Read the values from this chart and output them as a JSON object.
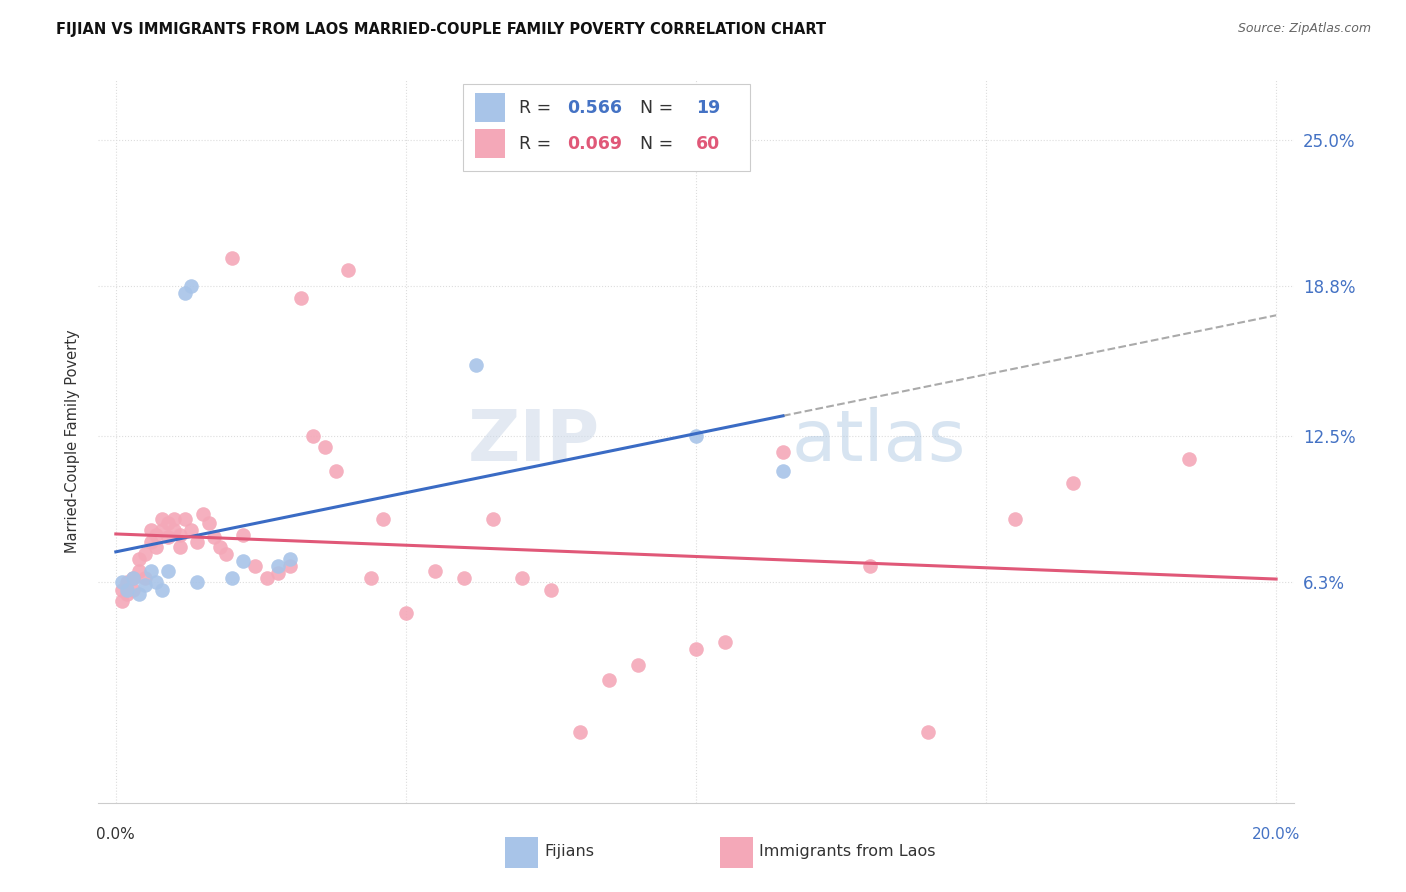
{
  "title": "FIJIAN VS IMMIGRANTS FROM LAOS MARRIED-COUPLE FAMILY POVERTY CORRELATION CHART",
  "source": "Source: ZipAtlas.com",
  "ylabel": "Married-Couple Family Poverty",
  "ytick_labels": [
    "25.0%",
    "18.8%",
    "12.5%",
    "6.3%"
  ],
  "ytick_values": [
    0.25,
    0.188,
    0.125,
    0.063
  ],
  "xlim": [
    0.0,
    0.2
  ],
  "ylim": [
    -0.03,
    0.275
  ],
  "fijian_color": "#a8c4e8",
  "laos_color": "#f4a8b8",
  "fijian_line_color": "#3a6bc4",
  "laos_line_color": "#e05878",
  "dashed_line_color": "#aaaaaa",
  "legend_R_fijian": "0.566",
  "legend_N_fijian": "19",
  "legend_R_laos": "0.069",
  "legend_N_laos": "60",
  "fijian_color_text": "#4472c4",
  "laos_color_text": "#e05878",
  "watermark_color": "#ccdcf0",
  "background_color": "#ffffff",
  "grid_color": "#dddddd",
  "fijian_x": [
    0.001,
    0.002,
    0.003,
    0.004,
    0.005,
    0.006,
    0.007,
    0.008,
    0.009,
    0.012,
    0.013,
    0.014,
    0.02,
    0.022,
    0.028,
    0.03,
    0.062,
    0.1,
    0.115
  ],
  "fijian_y": [
    0.063,
    0.06,
    0.065,
    0.058,
    0.062,
    0.068,
    0.063,
    0.06,
    0.068,
    0.185,
    0.188,
    0.063,
    0.065,
    0.072,
    0.07,
    0.073,
    0.155,
    0.125,
    0.11
  ],
  "laos_x": [
    0.001,
    0.001,
    0.002,
    0.002,
    0.003,
    0.003,
    0.004,
    0.004,
    0.005,
    0.005,
    0.006,
    0.006,
    0.007,
    0.007,
    0.008,
    0.008,
    0.009,
    0.009,
    0.01,
    0.01,
    0.011,
    0.011,
    0.012,
    0.013,
    0.014,
    0.015,
    0.016,
    0.017,
    0.018,
    0.019,
    0.02,
    0.022,
    0.024,
    0.026,
    0.028,
    0.03,
    0.032,
    0.034,
    0.036,
    0.038,
    0.04,
    0.044,
    0.046,
    0.05,
    0.055,
    0.06,
    0.065,
    0.07,
    0.075,
    0.08,
    0.085,
    0.09,
    0.1,
    0.105,
    0.115,
    0.13,
    0.14,
    0.155,
    0.165,
    0.185
  ],
  "laos_y": [
    0.06,
    0.055,
    0.063,
    0.058,
    0.065,
    0.06,
    0.068,
    0.073,
    0.075,
    0.065,
    0.08,
    0.085,
    0.078,
    0.083,
    0.085,
    0.09,
    0.088,
    0.082,
    0.085,
    0.09,
    0.083,
    0.078,
    0.09,
    0.085,
    0.08,
    0.092,
    0.088,
    0.082,
    0.078,
    0.075,
    0.2,
    0.083,
    0.07,
    0.065,
    0.067,
    0.07,
    0.183,
    0.125,
    0.12,
    0.11,
    0.195,
    0.065,
    0.09,
    0.05,
    0.068,
    0.065,
    0.09,
    0.065,
    0.06,
    0.0,
    0.022,
    0.028,
    0.035,
    0.038,
    0.118,
    0.07,
    0.0,
    0.09,
    0.105,
    0.115
  ],
  "xtick_positions": [
    0.0,
    0.05,
    0.1,
    0.15,
    0.2
  ],
  "bottom_legend_items": [
    "Fijians",
    "Immigrants from Laos"
  ]
}
